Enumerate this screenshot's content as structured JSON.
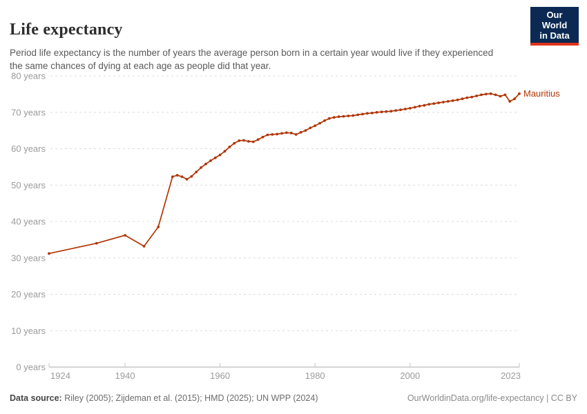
{
  "header": {
    "title": "Life expectancy",
    "subtitle": "Period life expectancy is the number of years the average person born in a certain year would live if they experienced the same chances of dying at each age as people did that year.",
    "logo": {
      "line1": "Our World",
      "line2": "in Data"
    }
  },
  "chart_data": {
    "type": "line",
    "title": "Life expectancy",
    "entity": "Mauritius",
    "line_color": "#B13507",
    "xlabel": "",
    "ylabel": "",
    "xlim": [
      1924,
      2023
    ],
    "ylim": [
      0,
      80
    ],
    "xticks": [
      1924,
      1940,
      1960,
      1980,
      2000,
      2023
    ],
    "yticks": [
      0,
      10,
      20,
      30,
      40,
      50,
      60,
      70,
      80
    ],
    "ytick_suffix": " years",
    "grid": "horizontal-dashed",
    "legend_position": "end-of-line",
    "x": [
      1924,
      1934,
      1940,
      1944,
      1947,
      1950,
      1951,
      1952,
      1953,
      1954,
      1955,
      1956,
      1957,
      1958,
      1959,
      1960,
      1961,
      1962,
      1963,
      1964,
      1965,
      1966,
      1967,
      1968,
      1969,
      1970,
      1971,
      1972,
      1973,
      1974,
      1975,
      1976,
      1977,
      1978,
      1979,
      1980,
      1981,
      1982,
      1983,
      1984,
      1985,
      1986,
      1987,
      1988,
      1989,
      1990,
      1991,
      1992,
      1993,
      1994,
      1995,
      1996,
      1997,
      1998,
      1999,
      2000,
      2001,
      2002,
      2003,
      2004,
      2005,
      2006,
      2007,
      2008,
      2009,
      2010,
      2011,
      2012,
      2013,
      2014,
      2015,
      2016,
      2017,
      2018,
      2019,
      2020,
      2021,
      2022,
      2023
    ],
    "y": [
      31.2,
      34.0,
      36.2,
      33.2,
      38.5,
      52.3,
      52.7,
      52.3,
      51.6,
      52.4,
      53.6,
      54.8,
      55.8,
      56.7,
      57.5,
      58.3,
      59.3,
      60.5,
      61.5,
      62.2,
      62.3,
      62.0,
      61.9,
      62.5,
      63.2,
      63.8,
      63.9,
      64.0,
      64.2,
      64.4,
      64.3,
      63.9,
      64.5,
      65.0,
      65.7,
      66.3,
      67.0,
      67.7,
      68.3,
      68.6,
      68.8,
      68.9,
      69.0,
      69.1,
      69.3,
      69.5,
      69.7,
      69.8,
      70.0,
      70.1,
      70.2,
      70.3,
      70.5,
      70.7,
      70.9,
      71.1,
      71.4,
      71.7,
      71.9,
      72.2,
      72.4,
      72.6,
      72.8,
      73.0,
      73.2,
      73.4,
      73.7,
      74.0,
      74.2,
      74.5,
      74.8,
      75.0,
      75.1,
      74.8,
      74.4,
      74.8,
      73.0,
      73.7,
      75.1
    ]
  },
  "footer": {
    "source_label": "Data source:",
    "source_text": "Riley (2005); Zijdeman et al. (2015); HMD (2025); UN WPP (2024)",
    "link_text": "OurWorldinData.org/life-expectancy | CC BY"
  },
  "colors": {
    "line": "#B13507",
    "gridline": "#dcdcdc",
    "axis_line": "#a8a8a8",
    "tick": "#c4c4c4",
    "axis_text": "#9a9a9a",
    "logo_bg": "#0b2952",
    "logo_red": "#e0331c"
  }
}
